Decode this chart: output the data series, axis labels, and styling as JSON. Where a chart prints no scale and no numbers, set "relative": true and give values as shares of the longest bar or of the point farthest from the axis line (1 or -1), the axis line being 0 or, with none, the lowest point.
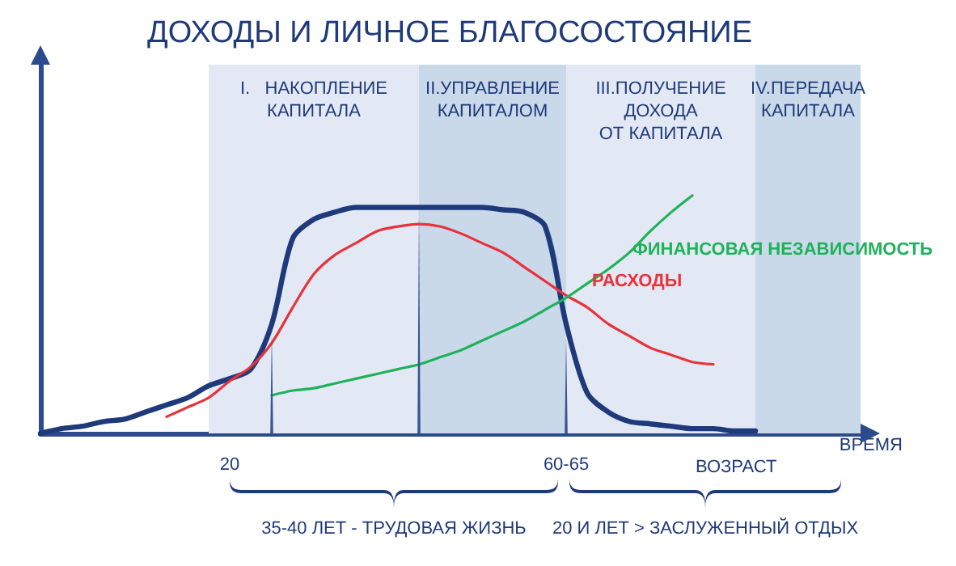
{
  "chart_data": {
    "type": "line",
    "title": "ДОХОДЫ И ЛИЧНОЕ БЛАГОСОСТОЯНИЕ",
    "xlabel": "ВРЕМЯ",
    "relative": true,
    "categories": [
      null,
      null,
      null,
      null,
      null,
      null,
      null,
      null,
      null,
      "20",
      null,
      null,
      null,
      null,
      null,
      null,
      null,
      null,
      null,
      null,
      null,
      null,
      null,
      null,
      null,
      "60-65",
      null,
      null,
      null,
      null,
      null,
      null,
      null,
      null,
      null,
      null,
      null,
      null,
      null,
      null
    ],
    "series": [
      {
        "color": "#1f3a7a",
        "values": [
          0,
          0.02,
          0.03,
          0.05,
          0.06,
          0.09,
          0.12,
          0.15,
          0.2,
          0.23,
          0.27,
          0.46,
          0.82,
          0.9,
          0.93,
          0.95,
          0.95,
          0.95,
          0.95,
          0.95,
          0.95,
          0.95,
          0.94,
          0.93,
          0.87,
          0.46,
          0.17,
          0.09,
          0.05,
          0.04,
          0.03,
          0.02,
          0.02,
          0.01,
          0.01,
          null,
          null,
          null,
          null,
          null
        ]
      },
      {
        "name": "РАСХОДЫ",
        "color": "#e8323c",
        "values": [
          null,
          null,
          null,
          null,
          null,
          null,
          0.07,
          0.11,
          0.15,
          0.22,
          0.28,
          0.38,
          0.53,
          0.67,
          0.75,
          0.8,
          0.85,
          0.87,
          0.88,
          0.87,
          0.84,
          0.8,
          0.76,
          0.7,
          0.64,
          0.58,
          0.53,
          0.46,
          0.41,
          0.36,
          0.33,
          0.3,
          0.29,
          null,
          null,
          null,
          null,
          null,
          null,
          null
        ]
      },
      {
        "name": "ФИНАНСОВАЯ НЕЗАВИСИМОСТЬ",
        "color": "#1fb25a",
        "values": [
          null,
          null,
          null,
          null,
          null,
          null,
          null,
          null,
          null,
          null,
          null,
          0.16,
          0.18,
          0.19,
          0.21,
          0.23,
          0.25,
          0.27,
          0.29,
          0.32,
          0.35,
          0.39,
          0.43,
          0.47,
          0.52,
          0.57,
          0.63,
          0.69,
          0.76,
          0.85,
          0.93,
          1,
          null,
          null,
          null,
          null,
          null,
          null,
          null,
          null
        ]
      }
    ],
    "annotations": [
      "I.   НАКОПЛЕНИЕ\nКАПИТАЛА",
      "II.УПРАВЛЕНИЕ\nКАПИТАЛОМ",
      "III.ПОЛУЧЕНИЕ\nДОХОДА\nОТ КАПИТАЛА",
      "IV.ПЕРЕДАЧА\nКАПИТАЛА",
      "ВОЗРАСТ",
      "35-40 ЛЕТ - ТРУДОВАЯ ЖИЗНЬ",
      "20 И ЛЕТ > ЗАСЛУЖЕННЫЙ ОТДЫХ"
    ],
    "grid": false,
    "marker": "none",
    "line_style": "solid"
  }
}
